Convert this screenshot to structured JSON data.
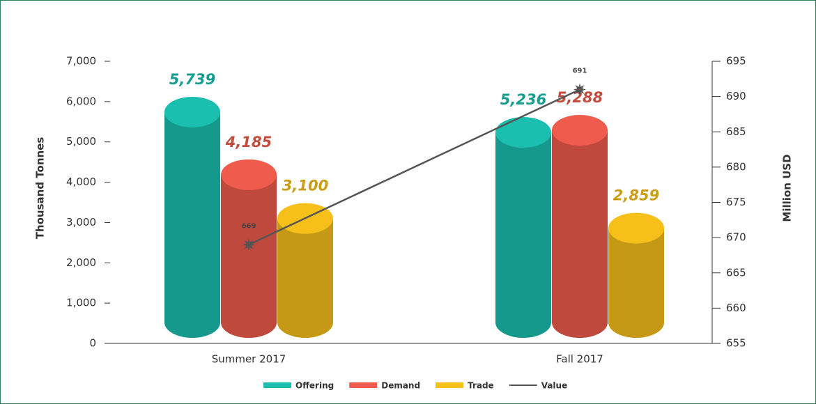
{
  "chart_data": {
    "type": "bar",
    "categories": [
      "Summer 2017",
      "Fall 2017"
    ],
    "series": [
      {
        "name": "Offering",
        "color": "#1abfb0",
        "values": [
          5739,
          5236
        ],
        "value_labels": [
          "5,739",
          "5,236"
        ]
      },
      {
        "name": "Demand",
        "color": "#ef5b4c",
        "values": [
          4185,
          5288
        ],
        "value_labels": [
          "4,185",
          "5,288"
        ]
      },
      {
        "name": "Trade",
        "color": "#f6bf1a",
        "values": [
          3100,
          2859
        ],
        "value_labels": [
          "3,100",
          "2,859"
        ]
      },
      {
        "name": "Value",
        "type": "line",
        "axis": "y2",
        "color": "#555555",
        "values": [
          669,
          691
        ]
      }
    ],
    "ylabel": "Thousand Tonnes",
    "y2label": "Million USD",
    "ylim": [
      0,
      7000
    ],
    "yticks": [
      0,
      {
        "value": 1000,
        "label": "1,000"
      },
      {
        "value": 2000,
        "label": "2,000"
      },
      {
        "value": 3000,
        "label": "3,000"
      },
      {
        "value": 4000,
        "label": "4,000"
      },
      {
        "value": 5000,
        "label": "5,000"
      },
      {
        "value": 6000,
        "label": "6,000"
      },
      {
        "value": 7000,
        "label": "7,000"
      }
    ],
    "y2lim": [
      655,
      695
    ],
    "y2ticks": [
      655,
      660,
      665,
      670,
      675,
      680,
      685,
      690,
      695
    ],
    "legend": "bottom"
  }
}
